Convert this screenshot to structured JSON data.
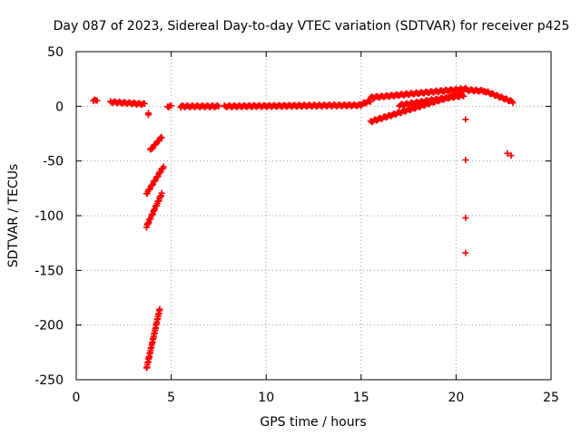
{
  "chart_data": {
    "type": "scatter",
    "title": "Day 087 of 2023, Sidereal Day-to-day VTEC variation (SDTVAR) for receiver p425",
    "xlabel": "GPS time / hours",
    "ylabel": "SDTVAR / TECUs",
    "xlim": [
      0,
      25
    ],
    "ylim": [
      -250,
      50
    ],
    "xticks": [
      0,
      5,
      10,
      15,
      20,
      25
    ],
    "yticks": [
      50,
      0,
      -50,
      -100,
      -150,
      -200,
      -250
    ],
    "grid": true,
    "marker": "+",
    "color": "#ff0000",
    "segments": [
      {
        "name": "early-cluster",
        "x0": 0.9,
        "x1": 1.1,
        "y0": 5,
        "y1": 6
      },
      {
        "name": "pre-dawn-plateau",
        "x0": 1.8,
        "x1": 3.6,
        "y0": 4,
        "y1": 2
      },
      {
        "name": "isolated-drop",
        "x0": 3.8,
        "x1": 3.8,
        "y0": -7,
        "y1": -7
      },
      {
        "name": "descent-upper",
        "x0": 3.9,
        "x1": 4.5,
        "y0": -40,
        "y1": -28
      },
      {
        "name": "descent-middle",
        "x0": 3.7,
        "x1": 4.6,
        "y0": -80,
        "y1": -55
      },
      {
        "name": "descent-lower",
        "x0": 3.7,
        "x1": 4.5,
        "y0": -110,
        "y1": -80
      },
      {
        "name": "descent-deep",
        "x0": 3.7,
        "x1": 4.4,
        "y0": -240,
        "y1": -185
      },
      {
        "name": "recovery-start",
        "x0": 4.8,
        "x1": 5.0,
        "y0": 0,
        "y1": 0
      },
      {
        "name": "midday-baseline-a",
        "x0": 5.5,
        "x1": 7.5,
        "y0": 0,
        "y1": 0
      },
      {
        "name": "midday-baseline-b",
        "x0": 7.8,
        "x1": 15.0,
        "y0": 0,
        "y1": 1
      },
      {
        "name": "afternoon-rise",
        "x0": 15.0,
        "x1": 15.5,
        "y0": 2,
        "y1": 5
      },
      {
        "name": "afternoon-upper-band",
        "x0": 15.5,
        "x1": 20.5,
        "y0": 8,
        "y1": 16
      },
      {
        "name": "afternoon-lower-band",
        "x0": 15.5,
        "x1": 20.3,
        "y0": -14,
        "y1": 12
      },
      {
        "name": "afternoon-mid-band",
        "x0": 17.0,
        "x1": 20.4,
        "y0": 1,
        "y1": 10
      },
      {
        "name": "evening-peak",
        "x0": 20.5,
        "x1": 21.5,
        "y0": 15,
        "y1": 14
      },
      {
        "name": "evening-decline",
        "x0": 21.5,
        "x1": 23.0,
        "y0": 14,
        "y1": 4
      }
    ],
    "isolated_points": [
      {
        "x": 20.5,
        "y": -12
      },
      {
        "x": 20.5,
        "y": -49
      },
      {
        "x": 20.5,
        "y": -102
      },
      {
        "x": 20.5,
        "y": -134
      },
      {
        "x": 22.7,
        "y": -43
      },
      {
        "x": 22.9,
        "y": -45
      },
      {
        "x": 5.5,
        "y": -1
      }
    ]
  }
}
